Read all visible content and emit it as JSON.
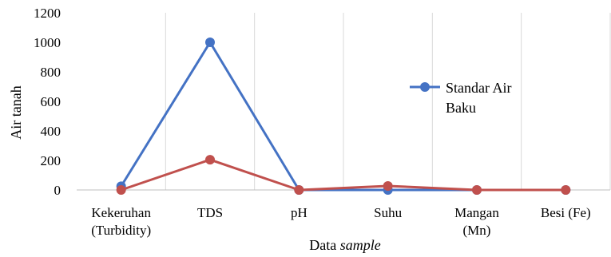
{
  "chart_data": {
    "type": "line",
    "title": "",
    "xlabel": "Data sample",
    "xlabel_parts": [
      "Data ",
      "sample"
    ],
    "ylabel": "Air tanah",
    "ylim": [
      0,
      1200
    ],
    "yticks": [
      0,
      200,
      400,
      600,
      800,
      1000,
      1200
    ],
    "grid": "vertical",
    "categories": [
      [
        "Kekeruhan",
        "(Turbidity)"
      ],
      [
        "TDS"
      ],
      [
        "pH"
      ],
      [
        "Suhu"
      ],
      [
        "Mangan",
        "(Mn)"
      ],
      [
        "Besi (Fe)"
      ]
    ],
    "series": [
      {
        "name": "Standar Air Baku",
        "color": "#4472c4",
        "values": [
          25,
          1000,
          0,
          0,
          0,
          0
        ]
      },
      {
        "color": "#c0504d",
        "values": [
          0,
          205,
          0,
          27,
          0,
          0
        ]
      }
    ],
    "legend": {
      "placement": "right",
      "lines": [
        "Standar Air",
        "Baku"
      ]
    }
  }
}
